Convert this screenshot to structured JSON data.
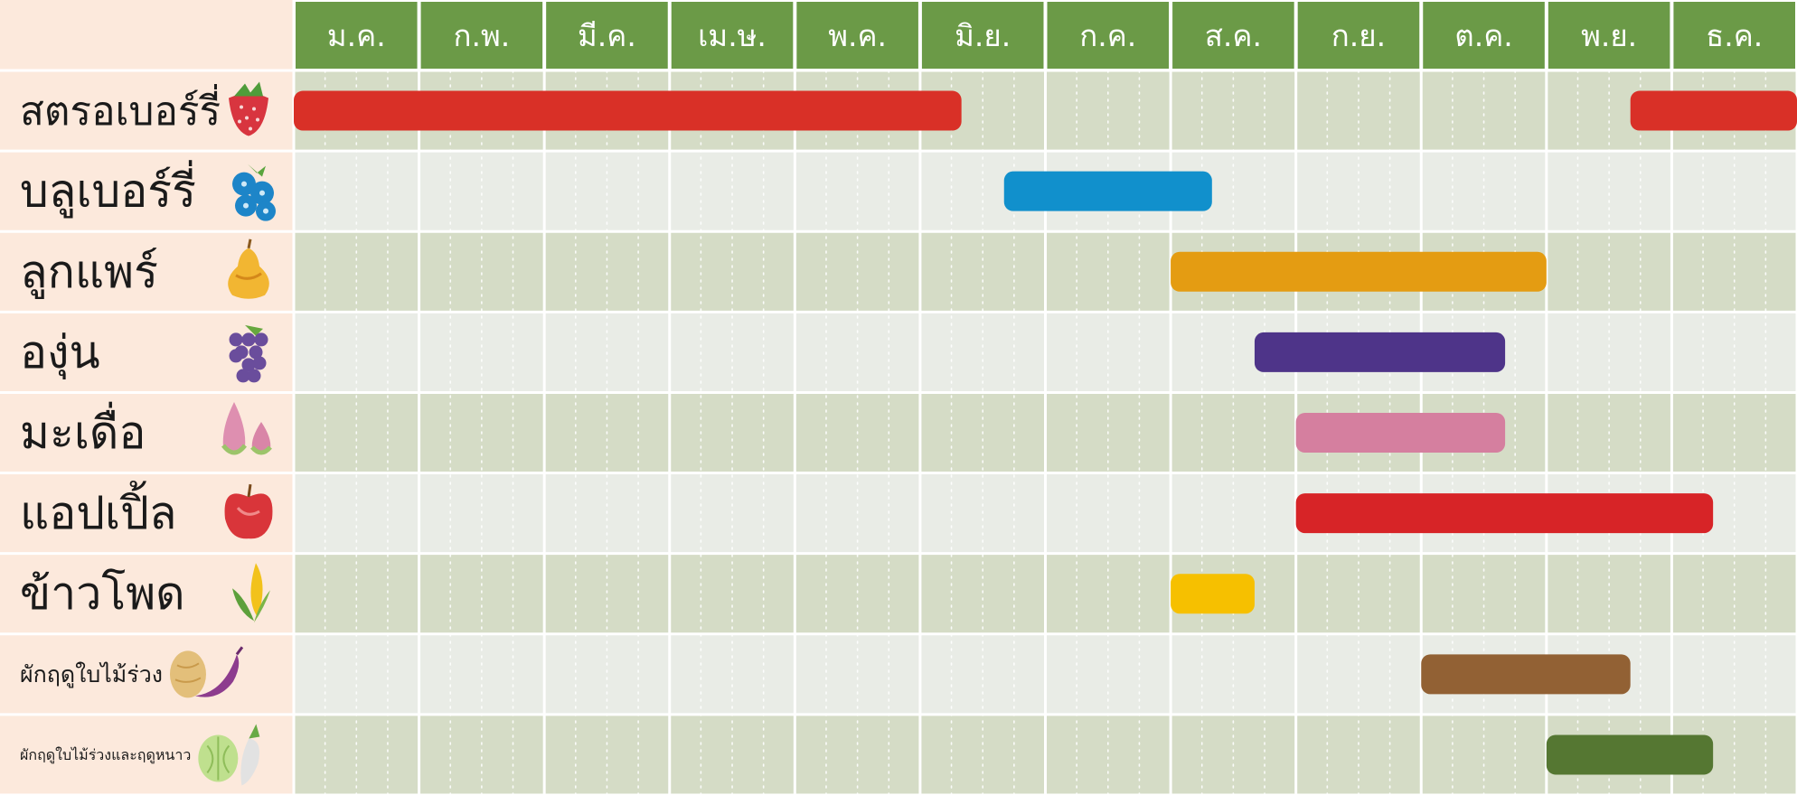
{
  "chart_data": {
    "type": "gantt",
    "title": "",
    "months": [
      "ม.ค.",
      "ก.พ.",
      "มี.ค.",
      "เม.ษ.",
      "พ.ค.",
      "มิ.ย.",
      "ก.ค.",
      "ส.ค.",
      "ก.ย.",
      "ต.ค.",
      "พ.ย.",
      "ธ.ค."
    ],
    "rows": [
      {
        "label": "สตรอเบอร์รี่",
        "icon": "strawberry-icon",
        "color": "#d93027",
        "periods": [
          {
            "start": 0,
            "end": 5.33
          },
          {
            "start": 10.67,
            "end": 12
          }
        ]
      },
      {
        "label": "บลูเบอร์รี่",
        "icon": "blueberry-icon",
        "color": "#1190cc",
        "periods": [
          {
            "start": 5.67,
            "end": 7.33
          }
        ]
      },
      {
        "label": "ลูกแพร์",
        "icon": "pear-icon",
        "color": "#e49c12",
        "periods": [
          {
            "start": 7,
            "end": 10
          }
        ]
      },
      {
        "label": "องุ่น",
        "icon": "grape-icon",
        "color": "#4e3489",
        "periods": [
          {
            "start": 7.67,
            "end": 9.67
          }
        ]
      },
      {
        "label": "มะเดื่อ",
        "icon": "fig-icon",
        "color": "#d57f9f",
        "periods": [
          {
            "start": 8,
            "end": 9.67
          }
        ]
      },
      {
        "label": "แอปเปิ้ล",
        "icon": "apple-icon",
        "color": "#d72427",
        "periods": [
          {
            "start": 8,
            "end": 11.33
          }
        ]
      },
      {
        "label": "ข้าวโพด",
        "icon": "corn-icon",
        "color": "#f6c000",
        "periods": [
          {
            "start": 7,
            "end": 7.67
          }
        ]
      },
      {
        "label": "ผักฤดูใบไม้ร่วง",
        "icon": "sweet-potato-icon",
        "color": "#926134",
        "periods": [
          {
            "start": 9,
            "end": 10.67
          }
        ]
      },
      {
        "label": "ผักฤดูใบไม้ร่วงและฤดูหนาว",
        "icon": "cabbage-radish-icon",
        "color": "#557732",
        "periods": [
          {
            "start": 10,
            "end": 11.33
          }
        ]
      }
    ]
  },
  "colors": {
    "header_bg": "#6b9a47",
    "header_text": "#ffffff",
    "label_bg": "#fce9dc",
    "row_dark": "#d5dcc6",
    "row_light": "#e9ece6",
    "label_text": "#1a1a1a"
  }
}
